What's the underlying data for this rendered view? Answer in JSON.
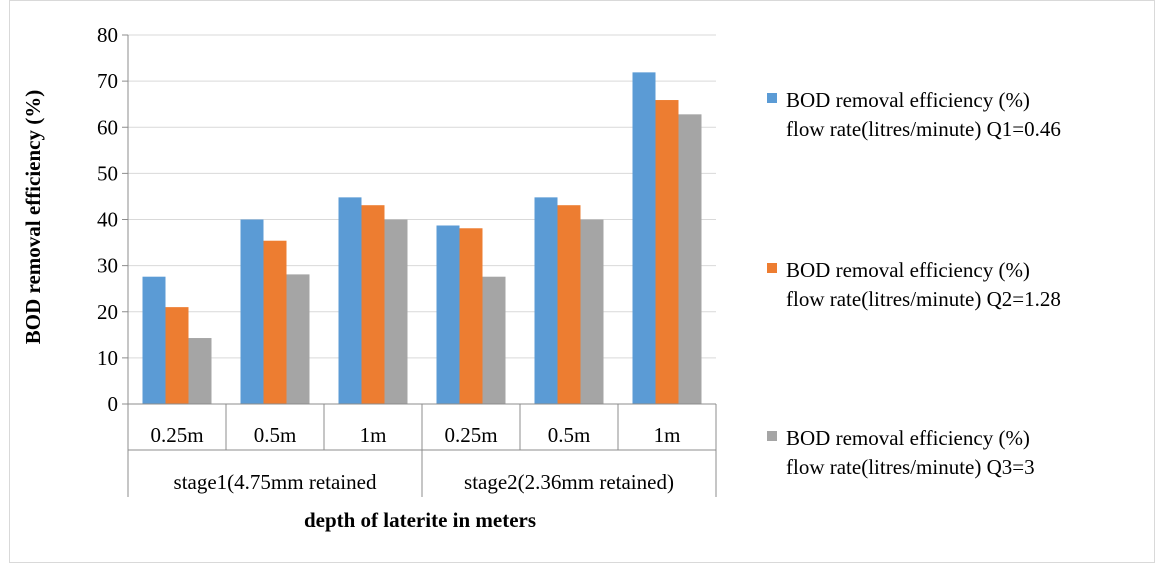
{
  "chart_data": {
    "type": "bar",
    "categories": [
      "0.25m",
      "0.5m",
      "1m",
      "0.25m",
      "0.5m",
      "1m"
    ],
    "groups": [
      "stage1(4.75mm retained",
      "stage2(2.36mm retained)"
    ],
    "series": [
      {
        "name": "BOD removal efficiency (%) flow rate(litres/minute) Q1=0.46",
        "legend_lines": [
          "BOD removal efficiency (%)",
          "flow rate(litres/minute) Q1=0.46"
        ],
        "color": "#5B9BD5",
        "values": [
          27.6,
          40,
          44.8,
          38.7,
          44.8,
          71.9
        ]
      },
      {
        "name": "BOD removal efficiency (%) flow rate(litres/minute) Q2=1.28",
        "legend_lines": [
          "BOD removal efficiency (%)",
          "flow rate(litres/minute) Q2=1.28"
        ],
        "color": "#ED7D31",
        "values": [
          21,
          35.4,
          43.1,
          38.1,
          43.1,
          65.9
        ]
      },
      {
        "name": "BOD removal efficiency (%) flow rate(litres/minute) Q3=3",
        "legend_lines": [
          "BOD removal efficiency (%)",
          "flow rate(litres/minute) Q3=3"
        ],
        "color": "#A5A5A5",
        "values": [
          14.3,
          28.1,
          40,
          27.6,
          40,
          62.8
        ]
      }
    ],
    "xlabel": "depth of laterite in meters",
    "ylabel": "BOD removal efficiency (%)",
    "ylim": [
      0,
      80
    ],
    "yticks": [
      0,
      10,
      20,
      30,
      40,
      50,
      60,
      70,
      80
    ],
    "grid": true,
    "legend_position": "right"
  }
}
